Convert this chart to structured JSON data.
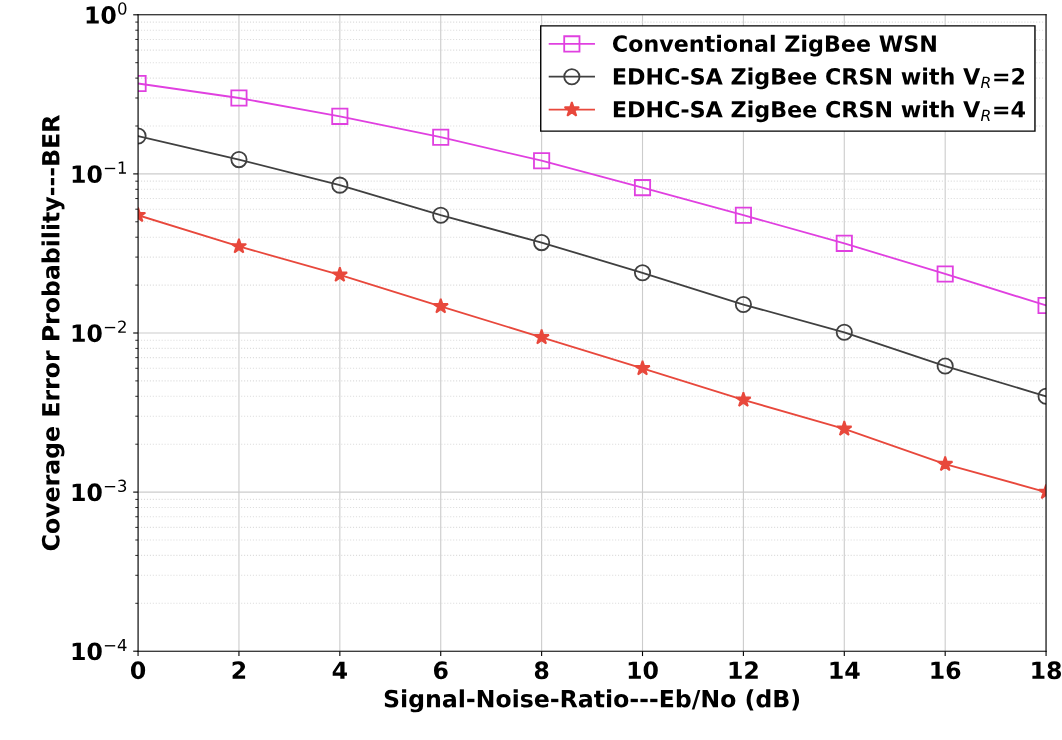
{
  "chart_data": {
    "type": "line",
    "xlabel": "Signal-Noise-Ratio---Eb/No (dB)",
    "ylabel": "Coverage Error Probability---BER",
    "x": [
      0,
      2,
      4,
      6,
      8,
      10,
      12,
      14,
      16,
      18
    ],
    "series": [
      {
        "name": "Conventional ZigBee WSN",
        "color": "#e040e0",
        "marker": "square",
        "values": [
          0.37,
          0.3,
          0.23,
          0.17,
          0.121,
          0.082,
          0.055,
          0.0366,
          0.0235,
          0.0149
        ]
      },
      {
        "name": "EDHC-SA ZigBee CRSN with V$_{R}$=2",
        "color": "#404040",
        "marker": "circle",
        "values": [
          0.173,
          0.123,
          0.085,
          0.055,
          0.037,
          0.0239,
          0.0151,
          0.0101,
          0.0062,
          0.004
        ]
      },
      {
        "name": "EDHC-SA ZigBee CRSN with V$_{R}$=4",
        "color": "#e8483c",
        "marker": "star",
        "values": [
          0.055,
          0.035,
          0.0232,
          0.0147,
          0.0094,
          0.006,
          0.0038,
          0.0025,
          0.0015,
          0.001
        ]
      }
    ],
    "log": "y",
    "xlim": [
      0,
      18
    ],
    "ylim": [
      0.0001,
      1
    ],
    "xticks": [
      0,
      2,
      4,
      6,
      8,
      10,
      12,
      14,
      16,
      18
    ],
    "yticks": [
      {
        "value": 0.0001,
        "label": "10$^{−4}$"
      },
      {
        "value": 0.001,
        "label": "10$^{−3}$"
      },
      {
        "value": 0.01,
        "label": "10$^{−2}$"
      },
      {
        "value": 0.1,
        "label": "10$^{−1}$"
      },
      {
        "value": 1,
        "label": "10$^{0}$"
      }
    ],
    "grid": true,
    "legend": "top right",
    "line_style": "solid"
  }
}
